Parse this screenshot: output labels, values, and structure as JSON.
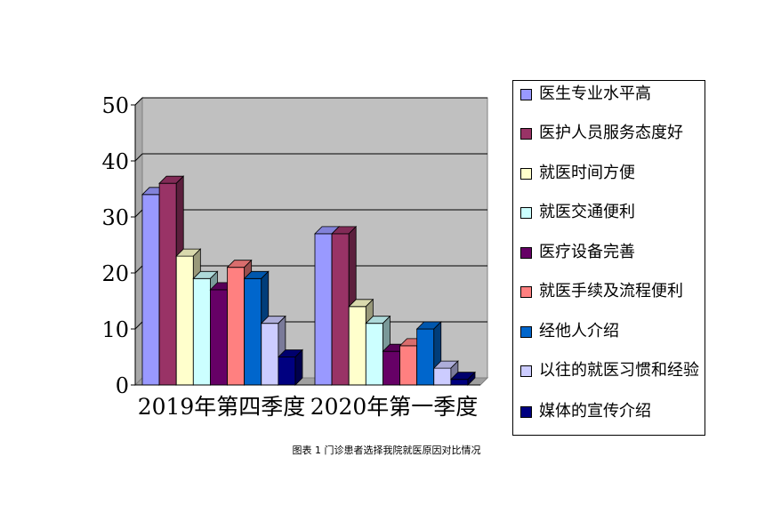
{
  "chart_data": {
    "type": "bar",
    "categories": [
      "2019年第四季度",
      "2020年第一季度"
    ],
    "series": [
      {
        "name": "医生专业水平高",
        "color": "#9999ff",
        "values": [
          34,
          27
        ]
      },
      {
        "name": "医护人员服务态度好",
        "color": "#993366",
        "values": [
          36,
          27
        ]
      },
      {
        "name": "就医时间方便",
        "color": "#ffffcc",
        "values": [
          23,
          14
        ]
      },
      {
        "name": "就医交通便利",
        "color": "#ccffff",
        "values": [
          19,
          11
        ]
      },
      {
        "name": "医疗设备完善",
        "color": "#660066",
        "values": [
          17,
          6
        ]
      },
      {
        "name": "就医手续及流程便利",
        "color": "#ff8080",
        "values": [
          21,
          7
        ]
      },
      {
        "name": "经他人介绍",
        "color": "#0066cc",
        "values": [
          19,
          10
        ]
      },
      {
        "name": "以往的就医习惯和经验",
        "color": "#ccccff",
        "values": [
          11,
          3
        ]
      },
      {
        "name": "媒体的宣传介绍",
        "color": "#000080",
        "values": [
          5,
          1
        ]
      }
    ],
    "ylim": [
      0,
      50
    ],
    "yticks": [
      "0",
      "10",
      "20",
      "30",
      "40",
      "50"
    ],
    "grid": true,
    "legend_position": "right",
    "style": "3d-column",
    "plot_background": "#c0c0c0"
  },
  "caption": "图表 1 门诊患者选择我院就医原因对比情况"
}
